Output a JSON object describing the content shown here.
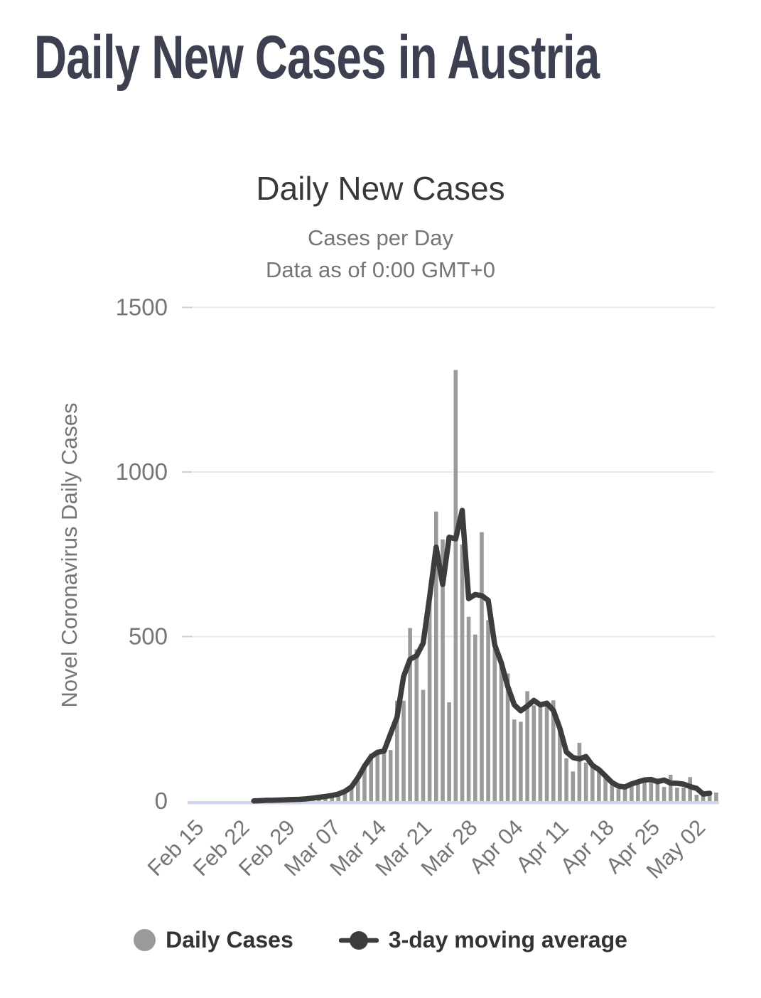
{
  "page": {
    "title": "Daily New Cases in Austria"
  },
  "chart": {
    "title": "Daily New Cases",
    "subtitle_line1": "Cases per Day",
    "subtitle_line2": "Data as of 0:00 GMT+0",
    "y_axis_label": "Novel Coronavirus Daily Cases"
  },
  "legend": {
    "daily_cases_label": "Daily Cases",
    "moving_average_label": "3-day moving average"
  },
  "colors": {
    "bar": "#9a9a9a",
    "line": "#3d3d3d",
    "baseline": "#ccd7ec",
    "gridline": "#e9e9e9",
    "tick_dash": "#cfcfcf",
    "axis_text": "#757575",
    "page_title_text": "#3d4050",
    "chart_title_text": "#383838",
    "legend_text": "#333333"
  },
  "chart_data": {
    "type": "bar",
    "title": "Daily New Cases",
    "xlabel": "",
    "ylabel": "Novel Coronavirus Daily Cases",
    "ylim": [
      0,
      1500
    ],
    "y_ticks": [
      0,
      500,
      1000,
      1500
    ],
    "grid": "horizontal",
    "legend_position": "bottom",
    "x_start_date": "Feb 15",
    "x_end_date": "May 05",
    "x_tick_labels": [
      "Feb 15",
      "Feb 22",
      "Feb 29",
      "Mar 07",
      "Mar 14",
      "Mar 21",
      "Mar 28",
      "Apr 04",
      "Apr 11",
      "Apr 18",
      "Apr 25",
      "May 02"
    ],
    "x_tick_indices": [
      0,
      7,
      14,
      21,
      28,
      35,
      42,
      49,
      56,
      63,
      70,
      77
    ],
    "series": [
      {
        "name": "Daily Cases",
        "type": "bar",
        "values": [
          0,
          0,
          0,
          0,
          0,
          0,
          0,
          0,
          0,
          0,
          2,
          2,
          3,
          3,
          4,
          5,
          5,
          6,
          9,
          12,
          14,
          16,
          21,
          28,
          40,
          62,
          112,
          144,
          148,
          153,
          155,
          305,
          305,
          526,
          461,
          338,
          640,
          880,
          795,
          300,
          1310,
          780,
          560,
          506,
          817,
          550,
          463,
          409,
          388,
          248,
          241,
          334,
          291,
          293,
          293,
          306,
          228,
          130,
          90,
          177,
          117,
          112,
          97,
          78,
          54,
          37,
          45,
          47,
          65,
          63,
          65,
          69,
          43,
          80,
          41,
          41,
          73,
          19,
          24,
          21,
          26
        ]
      },
      {
        "name": "3-day moving average",
        "type": "line",
        "derived_from": "Daily Cases",
        "derivation": "centered 3-day moving average",
        "window": 3,
        "draw_start_index": 9,
        "draw_end_index": 79
      }
    ]
  }
}
